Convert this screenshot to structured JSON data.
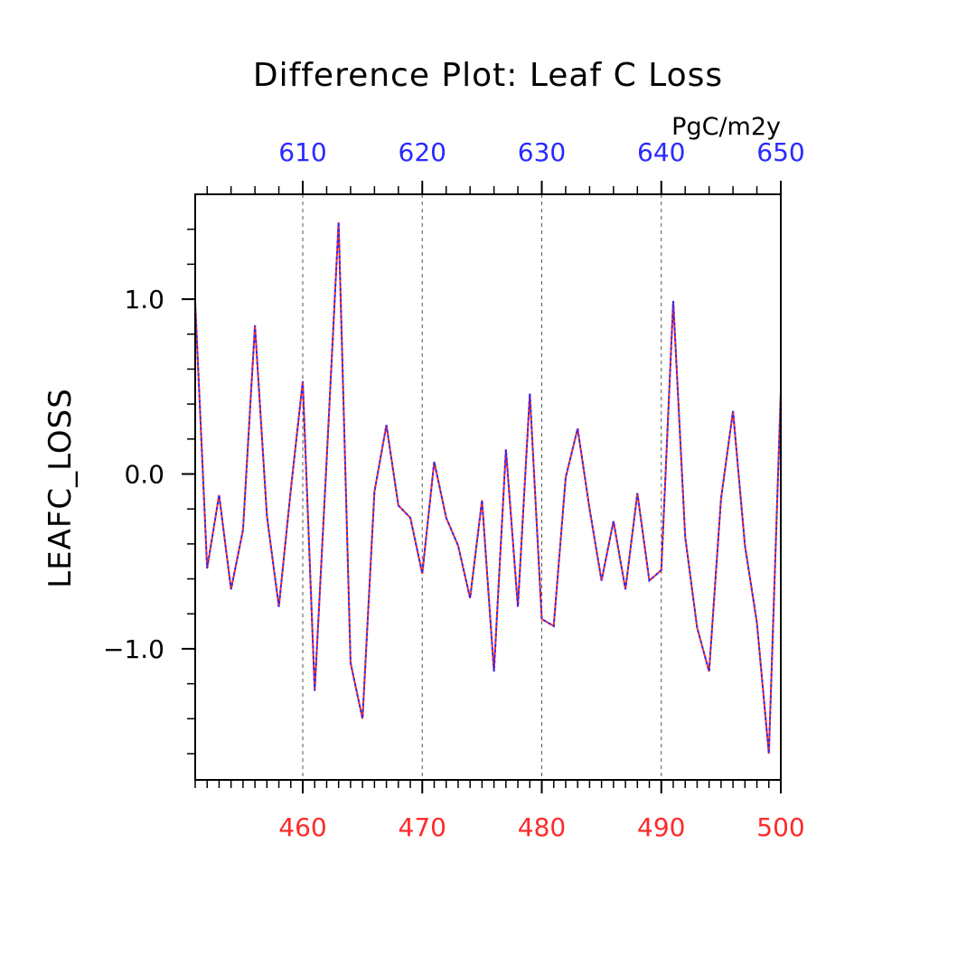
{
  "chart_data": {
    "type": "line",
    "title": "Difference Plot: Leaf C Loss",
    "units": "PgC/m2y",
    "ylabel": "LEAFC_LOSS",
    "ylim": [
      -1.75,
      1.6
    ],
    "yticks": [
      -1.0,
      0.0,
      1.0
    ],
    "ytick_labels": [
      "−1.0",
      "0.0",
      "1.0"
    ],
    "yminor": [
      -1.6,
      -1.4,
      -1.2,
      -0.8,
      -0.6,
      -0.4,
      -0.2,
      0.2,
      0.4,
      0.6,
      0.8,
      1.2,
      1.4
    ],
    "x_bottom": {
      "range": [
        451,
        500
      ],
      "ticks": [
        460,
        470,
        480,
        490,
        500
      ],
      "tick_labels": [
        "460",
        "470",
        "480",
        "490",
        "500"
      ],
      "color": "#ff2a2a"
    },
    "x_top": {
      "range": [
        601,
        650
      ],
      "ticks": [
        610,
        620,
        630,
        640,
        650
      ],
      "tick_labels": [
        "610",
        "620",
        "630",
        "640",
        "650"
      ],
      "color": "#2a2aff"
    },
    "grid": "vertical-dashed",
    "x": [
      451,
      452,
      453,
      454,
      455,
      456,
      457,
      458,
      459,
      460,
      461,
      462,
      463,
      464,
      465,
      466,
      467,
      468,
      469,
      470,
      471,
      472,
      473,
      474,
      475,
      476,
      477,
      478,
      479,
      480,
      481,
      482,
      483,
      484,
      485,
      486,
      487,
      488,
      489,
      490,
      491,
      492,
      493,
      494,
      495,
      496,
      497,
      498,
      499,
      500
    ],
    "series": [
      {
        "color": "#ff2a2a",
        "style": "solid",
        "values": [
          0.98,
          -0.54,
          -0.12,
          -0.66,
          -0.32,
          0.85,
          -0.24,
          -0.76,
          -0.09,
          0.53,
          -1.24,
          0.08,
          1.44,
          -1.08,
          -1.4,
          -0.1,
          0.28,
          -0.18,
          -0.25,
          -0.57,
          0.07,
          -0.25,
          -0.41,
          -0.71,
          -0.15,
          -1.13,
          0.14,
          -0.76,
          0.46,
          -0.83,
          -0.87,
          -0.02,
          0.26,
          -0.2,
          -0.61,
          -0.27,
          -0.66,
          -0.11,
          -0.61,
          -0.55,
          0.99,
          -0.36,
          -0.88,
          -1.13,
          -0.14,
          0.36,
          -0.41,
          -0.85,
          -1.6,
          0.47
        ]
      },
      {
        "color": "#2a2aff",
        "style": "dashed",
        "values": [
          0.98,
          -0.54,
          -0.12,
          -0.66,
          -0.32,
          0.85,
          -0.24,
          -0.76,
          -0.09,
          0.53,
          -1.24,
          0.08,
          1.44,
          -1.08,
          -1.4,
          -0.1,
          0.28,
          -0.18,
          -0.25,
          -0.57,
          0.07,
          -0.25,
          -0.41,
          -0.71,
          -0.15,
          -1.13,
          0.14,
          -0.76,
          0.46,
          -0.83,
          -0.87,
          -0.02,
          0.26,
          -0.2,
          -0.61,
          -0.27,
          -0.66,
          -0.11,
          -0.61,
          -0.55,
          0.99,
          -0.36,
          -0.88,
          -1.13,
          -0.14,
          0.36,
          -0.41,
          -0.85,
          -1.6,
          0.47
        ]
      }
    ]
  }
}
